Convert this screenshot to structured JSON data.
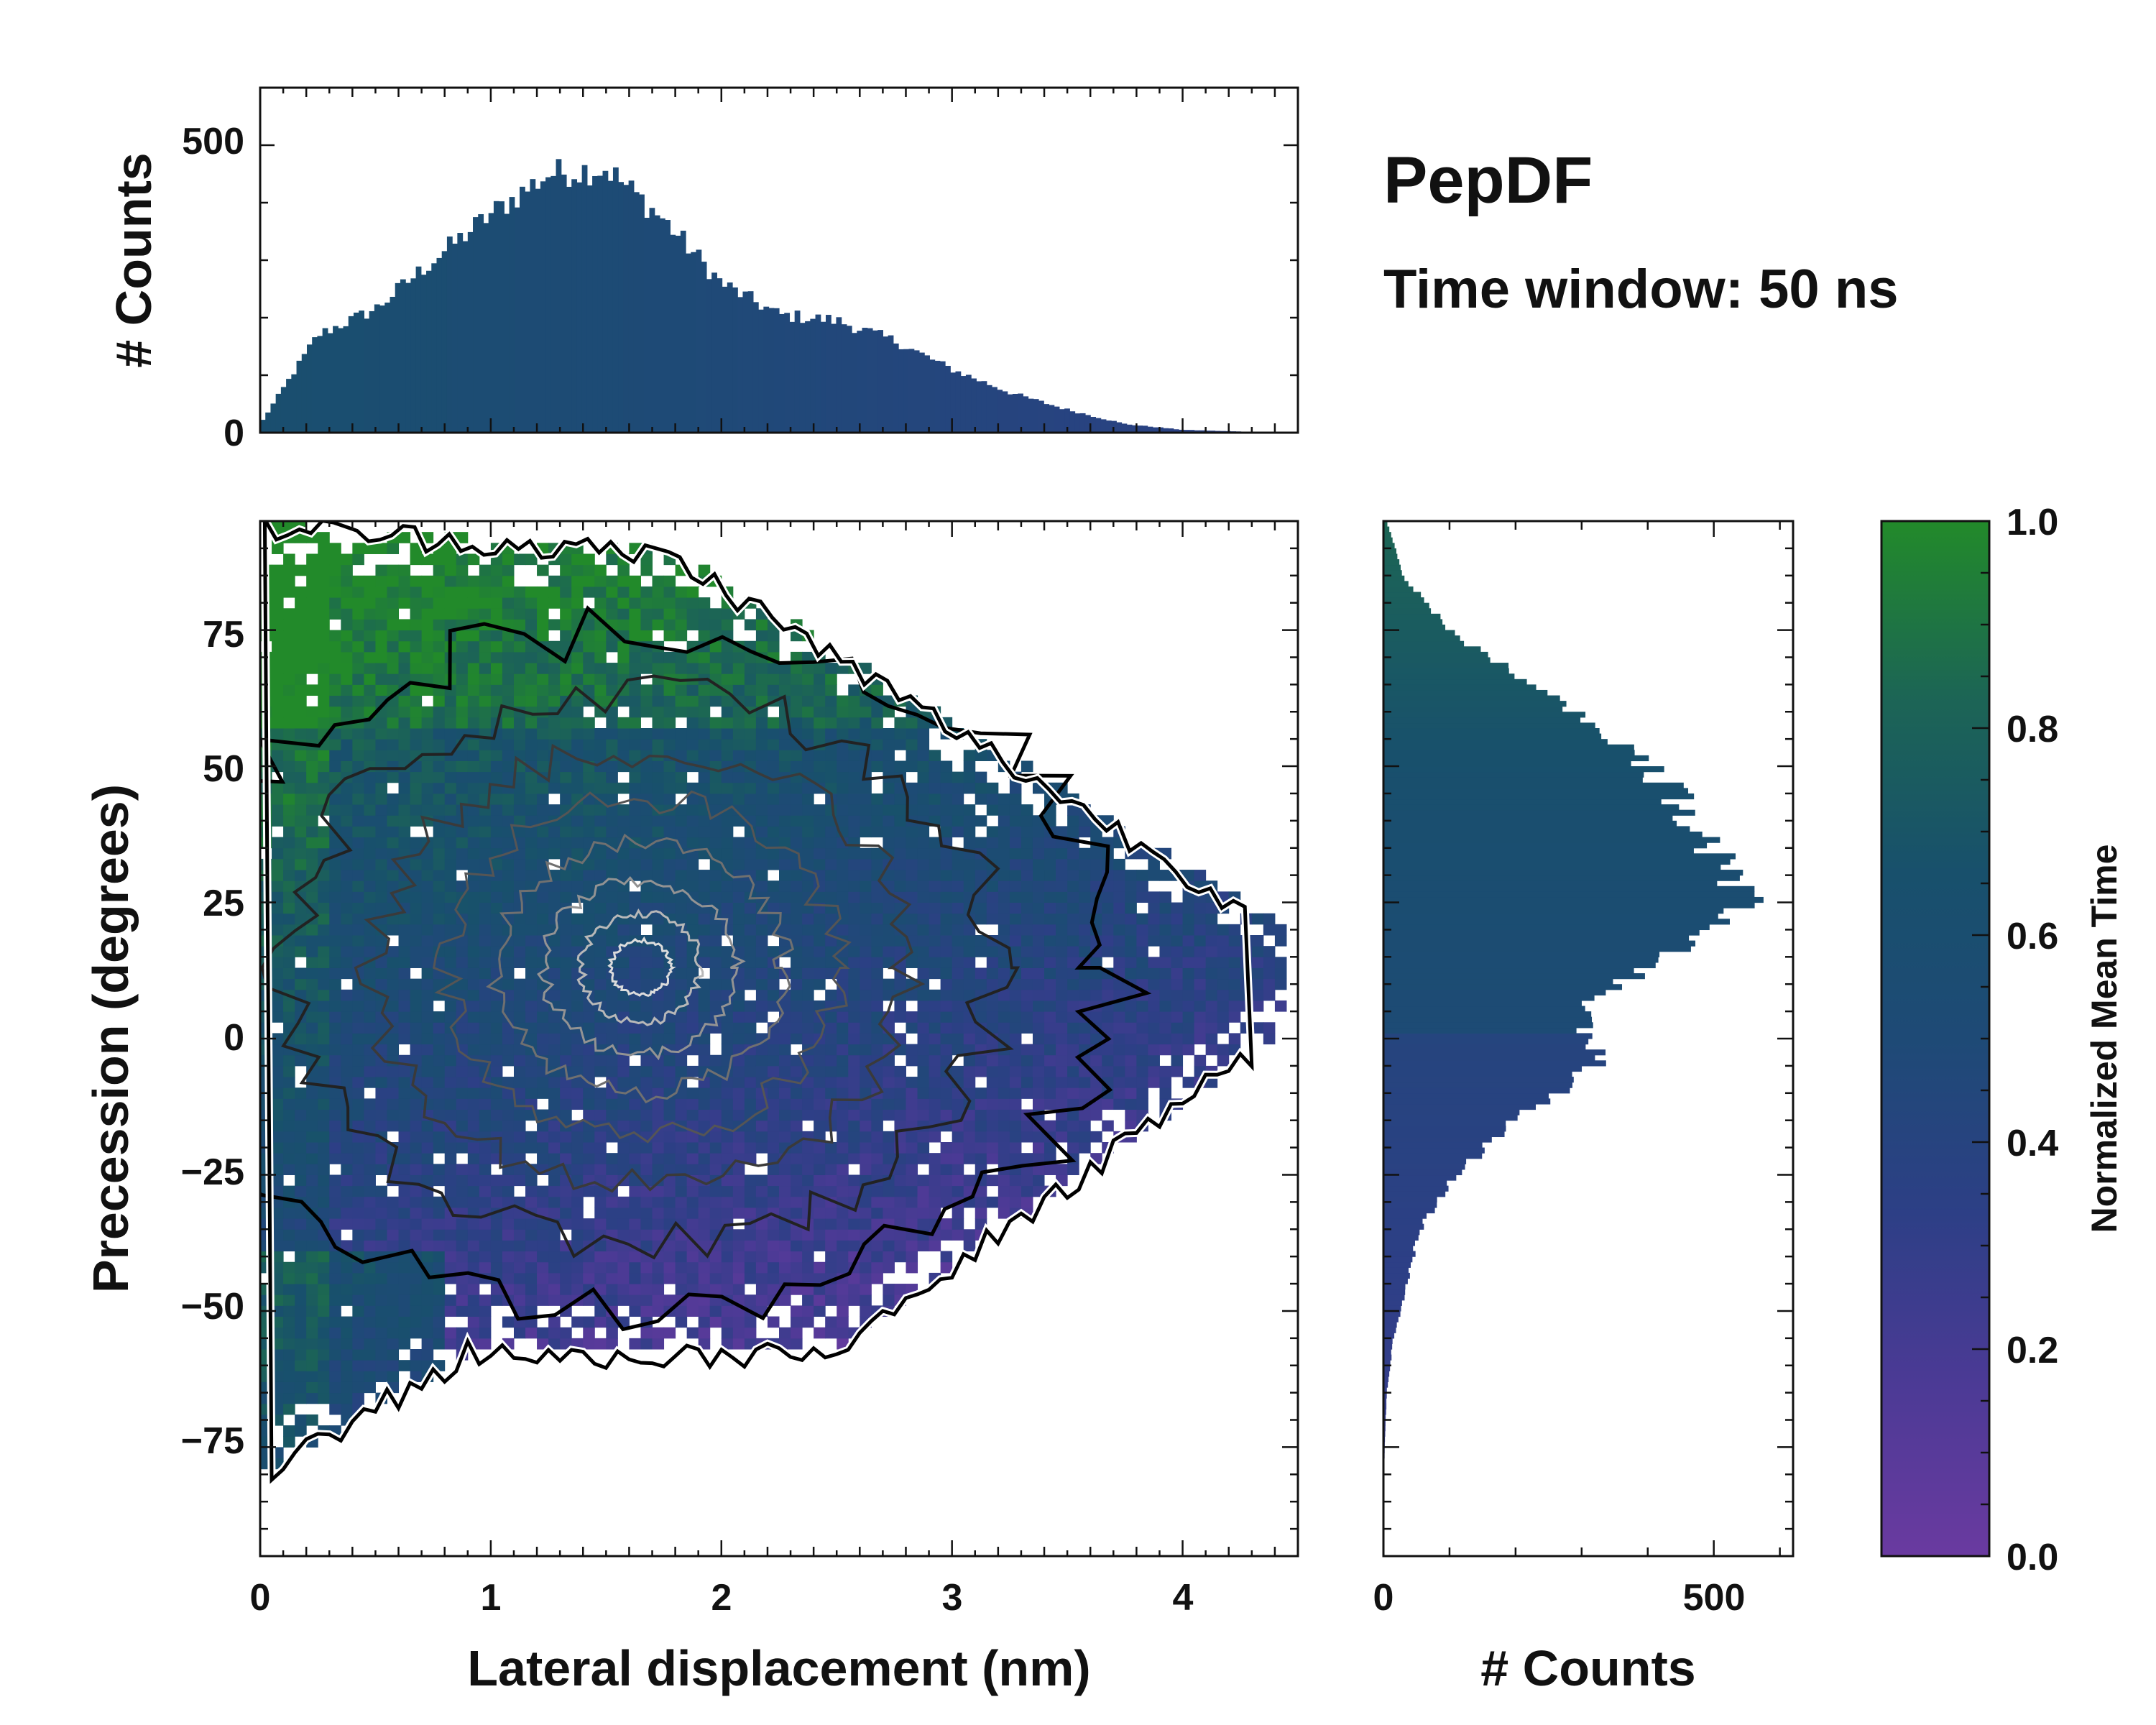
{
  "chart_data": {
    "type": "heatmap",
    "title": "PepDF",
    "subtitle": "Time window: 50 ns",
    "main": {
      "xlabel": "Lateral displacement (nm)",
      "ylabel": "Precession (degrees)",
      "xlim": [
        0,
        4.5
      ],
      "ylim": [
        -95,
        95
      ],
      "xticks": [
        "0",
        "1",
        "2",
        "3",
        "4"
      ],
      "yticks": [
        "75",
        "50",
        "25",
        "0",
        "−25",
        "−50",
        "−75"
      ],
      "description_values": {
        "occupied_region": "fan shaped: x 0-4.3 nm, precession -80 to 95 deg, narrowing with x",
        "density_peak": {
          "x": 1.4,
          "y": 25
        }
      }
    },
    "top_histogram": {
      "ylabel": "# Counts",
      "yticks": [
        "500",
        "0"
      ],
      "ylim": [
        0,
        600
      ],
      "bin_centers_nm": [
        0.0,
        0.25,
        0.5,
        0.75,
        1.0,
        1.25,
        1.5,
        1.75,
        2.0,
        2.25,
        2.5,
        2.75,
        3.0,
        3.25,
        3.5,
        3.75,
        4.0,
        4.25
      ],
      "counts": [
        15,
        170,
        215,
        300,
        380,
        450,
        460,
        370,
        260,
        205,
        195,
        160,
        110,
        70,
        40,
        15,
        5,
        2
      ]
    },
    "right_histogram": {
      "xlabel": "# Counts",
      "xticks": [
        "0",
        "500"
      ],
      "xlim": [
        0,
        620
      ],
      "bin_centers_deg": [
        95,
        85,
        75,
        65,
        55,
        45,
        35,
        25,
        15,
        5,
        -5,
        -15,
        -25,
        -35,
        -45,
        -55,
        -65,
        -75,
        -85
      ],
      "counts": [
        5,
        30,
        100,
        220,
        360,
        440,
        500,
        560,
        430,
        300,
        320,
        200,
        110,
        55,
        35,
        15,
        5,
        2,
        0
      ]
    },
    "colorbar": {
      "label": "Normalized Mean Time",
      "ticks": [
        "1.0",
        "0.8",
        "0.6",
        "0.4",
        "0.2",
        "0.0"
      ],
      "range": [
        0,
        1
      ],
      "colors": [
        "#6a3aa0",
        "#4b3a95",
        "#2d3f86",
        "#1e4a76",
        "#18506c",
        "#1c6555",
        "#228a2a"
      ]
    }
  }
}
